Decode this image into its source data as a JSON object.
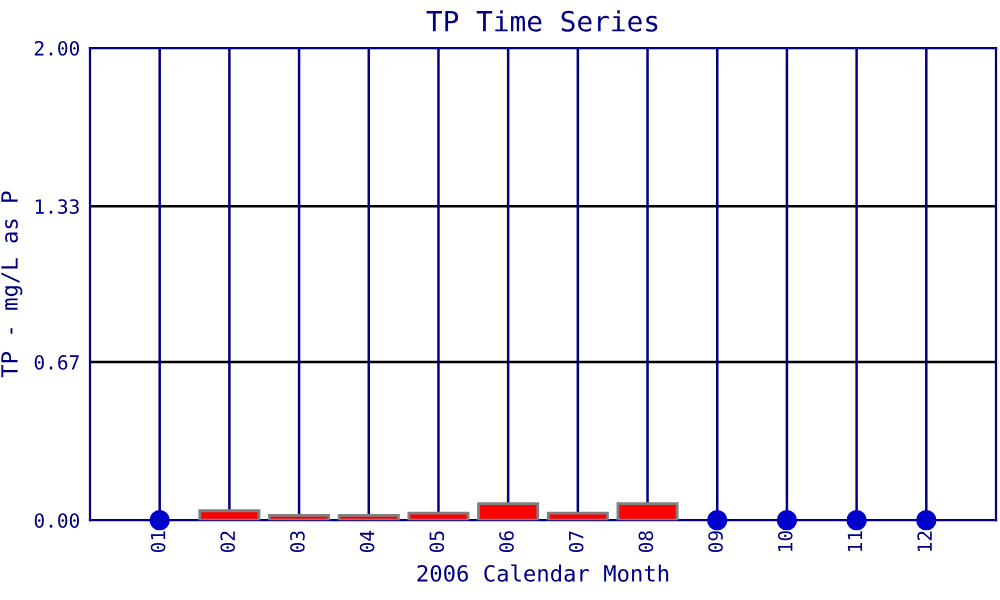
{
  "chart_data": {
    "type": "bar",
    "title": "TP Time Series",
    "xlabel": "2006 Calendar Month",
    "ylabel": "TP - mg/L as P",
    "categories": [
      "01",
      "02",
      "03",
      "04",
      "05",
      "06",
      "07",
      "08",
      "09",
      "10",
      "11",
      "12"
    ],
    "series": [
      {
        "color": "#ff0000",
        "values": [
          null,
          0.04,
          0.02,
          0.02,
          0.03,
          0.07,
          0.03,
          0.07,
          null,
          null,
          null,
          null
        ]
      },
      {
        "type": "scatter",
        "color": "#0000cc",
        "values": [
          0,
          null,
          null,
          null,
          null,
          null,
          null,
          null,
          0,
          0,
          0,
          0
        ]
      }
    ],
    "ylim": [
      0,
      2
    ],
    "yticks": [
      {
        "value": 0,
        "label": "0.00"
      },
      {
        "value": 0.67,
        "label": "0.67"
      },
      {
        "value": 1.33,
        "label": "1.33"
      },
      {
        "value": 2,
        "label": "2.00"
      }
    ],
    "grid": true,
    "marker": "circle"
  }
}
